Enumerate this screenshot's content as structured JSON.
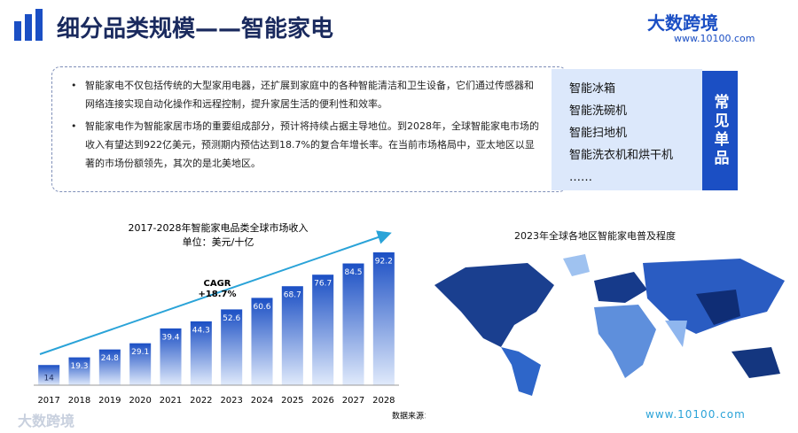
{
  "header": {
    "title": "细分品类规模——智能家电",
    "logo": "大数跨境",
    "url": "www.10100.com"
  },
  "bullets": [
    "智能家电不仅包括传统的大型家用电器，还扩展到家庭中的各种智能清洁和卫生设备，它们通过传感器和网络连接实现自动化操作和远程控制，提升家居生活的便利性和效率。",
    "智能家电作为智能家居市场的重要组成部分，预计将持续占据主导地位。到2028年，全球智能家电市场的收入有望达到922亿美元，预测期内预估达到18.7%的复合年增长率。在当前市场格局中，亚太地区以显著的市场份额领先，其次的是北美地区。"
  ],
  "products": {
    "label": "常见单品",
    "items": [
      "智能冰箱",
      "智能洗碗机",
      "智能扫地机",
      "智能洗衣机和烘干机",
      "……"
    ]
  },
  "chart_data": {
    "type": "bar",
    "title": "2017-2028年智能家电品类全球市场收入",
    "subtitle": "单位：美元/十亿",
    "categories": [
      "2017",
      "2018",
      "2019",
      "2020",
      "2021",
      "2022",
      "2023",
      "2024",
      "2025",
      "2026",
      "2027",
      "2028"
    ],
    "values": [
      14,
      19.3,
      24.8,
      29.1,
      39.4,
      44.3,
      52.6,
      60.6,
      68.7,
      76.7,
      84.5,
      92.2
    ],
    "color": "#1b4fc4",
    "annotation": {
      "title": "CAGR",
      "value": "+18.7%"
    },
    "source": "数据来源：statista"
  },
  "map": {
    "title": "2023年全球各地区智能家电普及程度"
  },
  "footer": {
    "watermark": "大数跨境",
    "url": "www.10100.com"
  }
}
